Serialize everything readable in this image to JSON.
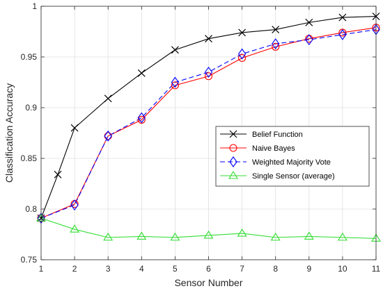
{
  "chart_data": {
    "type": "line",
    "title": "",
    "xlabel": "Sensor Number",
    "ylabel": "Classification Accuracy",
    "xlim": [
      1,
      11
    ],
    "ylim": [
      0.75,
      1
    ],
    "xticks": [
      "1",
      "2",
      "3",
      "4",
      "5",
      "6",
      "7",
      "8",
      "9",
      "10",
      "11"
    ],
    "yticks": [
      "0.75",
      "0.8",
      "0.85",
      "0.9",
      "0.95",
      "1"
    ],
    "grid": true,
    "legend_position": "right",
    "series": [
      {
        "name": "Belief Function",
        "color": "#000000",
        "marker": "x",
        "dash": "solid",
        "x": [
          1,
          1.5,
          2,
          3,
          4,
          5,
          6,
          7,
          8,
          9,
          10,
          11
        ],
        "y": [
          0.791,
          0.834,
          0.88,
          0.909,
          0.934,
          0.957,
          0.968,
          0.974,
          0.977,
          0.984,
          0.989,
          0.99
        ]
      },
      {
        "name": "Naive Bayes",
        "color": "#ff0000",
        "marker": "circle",
        "dash": "solid",
        "x": [
          1,
          2,
          3,
          4,
          5,
          6,
          7,
          8,
          9,
          10,
          11
        ],
        "y": [
          0.791,
          0.805,
          0.872,
          0.888,
          0.922,
          0.931,
          0.949,
          0.96,
          0.968,
          0.974,
          0.979
        ]
      },
      {
        "name": "Weighted Majority Vote",
        "color": "#0000ff",
        "marker": "diamond",
        "dash": "dashed",
        "x": [
          1,
          2,
          3,
          4,
          5,
          6,
          7,
          8,
          9,
          10,
          11
        ],
        "y": [
          0.791,
          0.804,
          0.872,
          0.89,
          0.925,
          0.935,
          0.953,
          0.963,
          0.967,
          0.972,
          0.977
        ]
      },
      {
        "name": "Single Sensor (average)",
        "color": "#33dd33",
        "marker": "triangle",
        "dash": "solid",
        "x": [
          1,
          2,
          3,
          4,
          5,
          6,
          7,
          8,
          9,
          10,
          11
        ],
        "y": [
          0.791,
          0.78,
          0.772,
          0.773,
          0.772,
          0.774,
          0.776,
          0.772,
          0.773,
          0.772,
          0.771
        ]
      }
    ]
  }
}
